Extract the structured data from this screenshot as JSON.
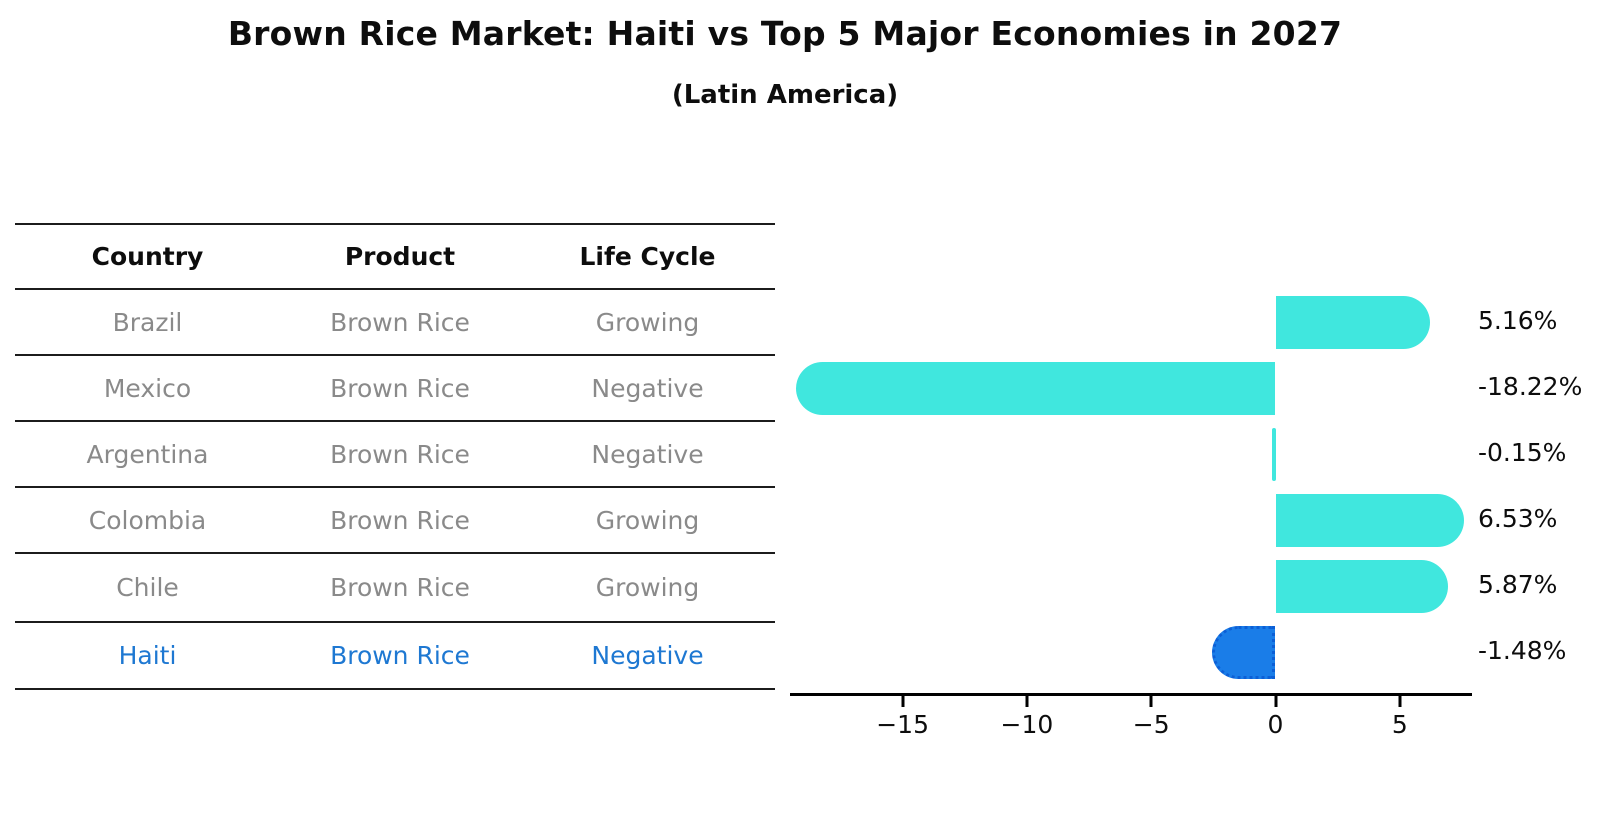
{
  "title": "Brown Rice Market: Haiti vs Top 5 Major Economies in 2027",
  "subtitle": "(Latin America)",
  "table": {
    "headers": [
      "Country",
      "Product",
      "Life Cycle"
    ],
    "rows": [
      {
        "country": "Brazil",
        "product": "Brown Rice",
        "life_cycle": "Growing",
        "highlight": false
      },
      {
        "country": "Mexico",
        "product": "Brown Rice",
        "life_cycle": "Negative",
        "highlight": false
      },
      {
        "country": "Argentina",
        "product": "Brown Rice",
        "life_cycle": "Negative",
        "highlight": false
      },
      {
        "country": "Colombia",
        "product": "Brown Rice",
        "life_cycle": "Growing",
        "highlight": false
      },
      {
        "country": "Chile",
        "product": "Brown Rice",
        "life_cycle": "Growing",
        "highlight": false
      },
      {
        "country": "Haiti",
        "product": "Brown Rice",
        "life_cycle": "Negative",
        "highlight": true
      }
    ]
  },
  "chart_data": {
    "type": "bar",
    "orientation": "horizontal",
    "categories": [
      "Brazil",
      "Mexico",
      "Argentina",
      "Colombia",
      "Chile",
      "Haiti"
    ],
    "values": [
      5.16,
      -18.22,
      -0.15,
      6.53,
      5.87,
      -1.48
    ],
    "value_labels": [
      "5.16%",
      "-18.22%",
      "-0.15%",
      "6.53%",
      "5.87%",
      "-1.48%"
    ],
    "x_ticks": [
      -15,
      -10,
      -5,
      0,
      5
    ],
    "x_tick_labels": [
      "−15",
      "−10",
      "−5",
      "0",
      "5"
    ],
    "xlim": [
      -19.5,
      7.9
    ],
    "grid": false,
    "legend": false,
    "highlight_index": 5,
    "highlight_style": "dotted-border",
    "colors": {
      "bar_default": "#40e7de",
      "bar_highlight": "#1a7de8",
      "highlight_text": "#1e78d2"
    }
  }
}
